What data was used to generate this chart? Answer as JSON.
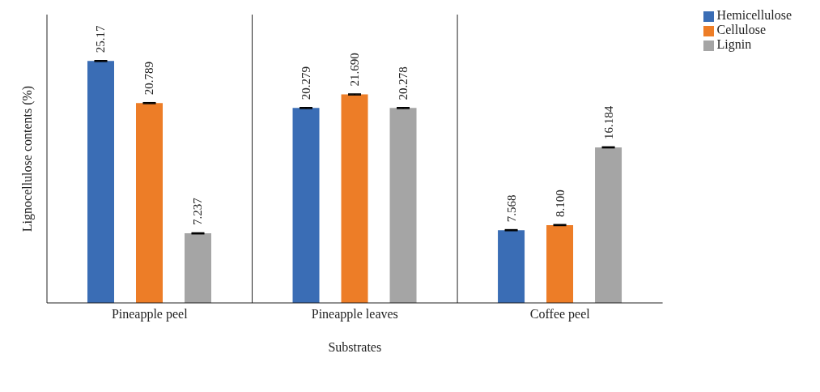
{
  "chart_data": {
    "type": "bar",
    "xlabel": "Substrates",
    "ylabel": "Lignocellulose contents (%)",
    "categories": [
      "Pineapple peel",
      "Pineapple leaves",
      "Coffee peel"
    ],
    "series": [
      {
        "name": "Hemicellulose",
        "color": "#3a6db5",
        "values": [
          25.17,
          20.279,
          7.568
        ],
        "errors": [
          0.05,
          0.05,
          0.05
        ],
        "value_labels": [
          "25.17",
          "20.279",
          "7.568"
        ]
      },
      {
        "name": "Cellulose",
        "color": "#ed7d27",
        "values": [
          20.789,
          21.69,
          8.1
        ],
        "errors": [
          0.05,
          0.05,
          0.05
        ],
        "value_labels": [
          "20.789",
          "21.690",
          "8.100"
        ]
      },
      {
        "name": "Lignin",
        "color": "#a5a5a5",
        "values": [
          7.237,
          20.278,
          16.184
        ],
        "errors": [
          0.05,
          0.05,
          0.05
        ],
        "value_labels": [
          "7.237",
          "20.278",
          "16.184"
        ]
      }
    ],
    "ylim": [
      0,
      30
    ],
    "grid": "x",
    "legend": "top right",
    "tick_labels": "x"
  }
}
